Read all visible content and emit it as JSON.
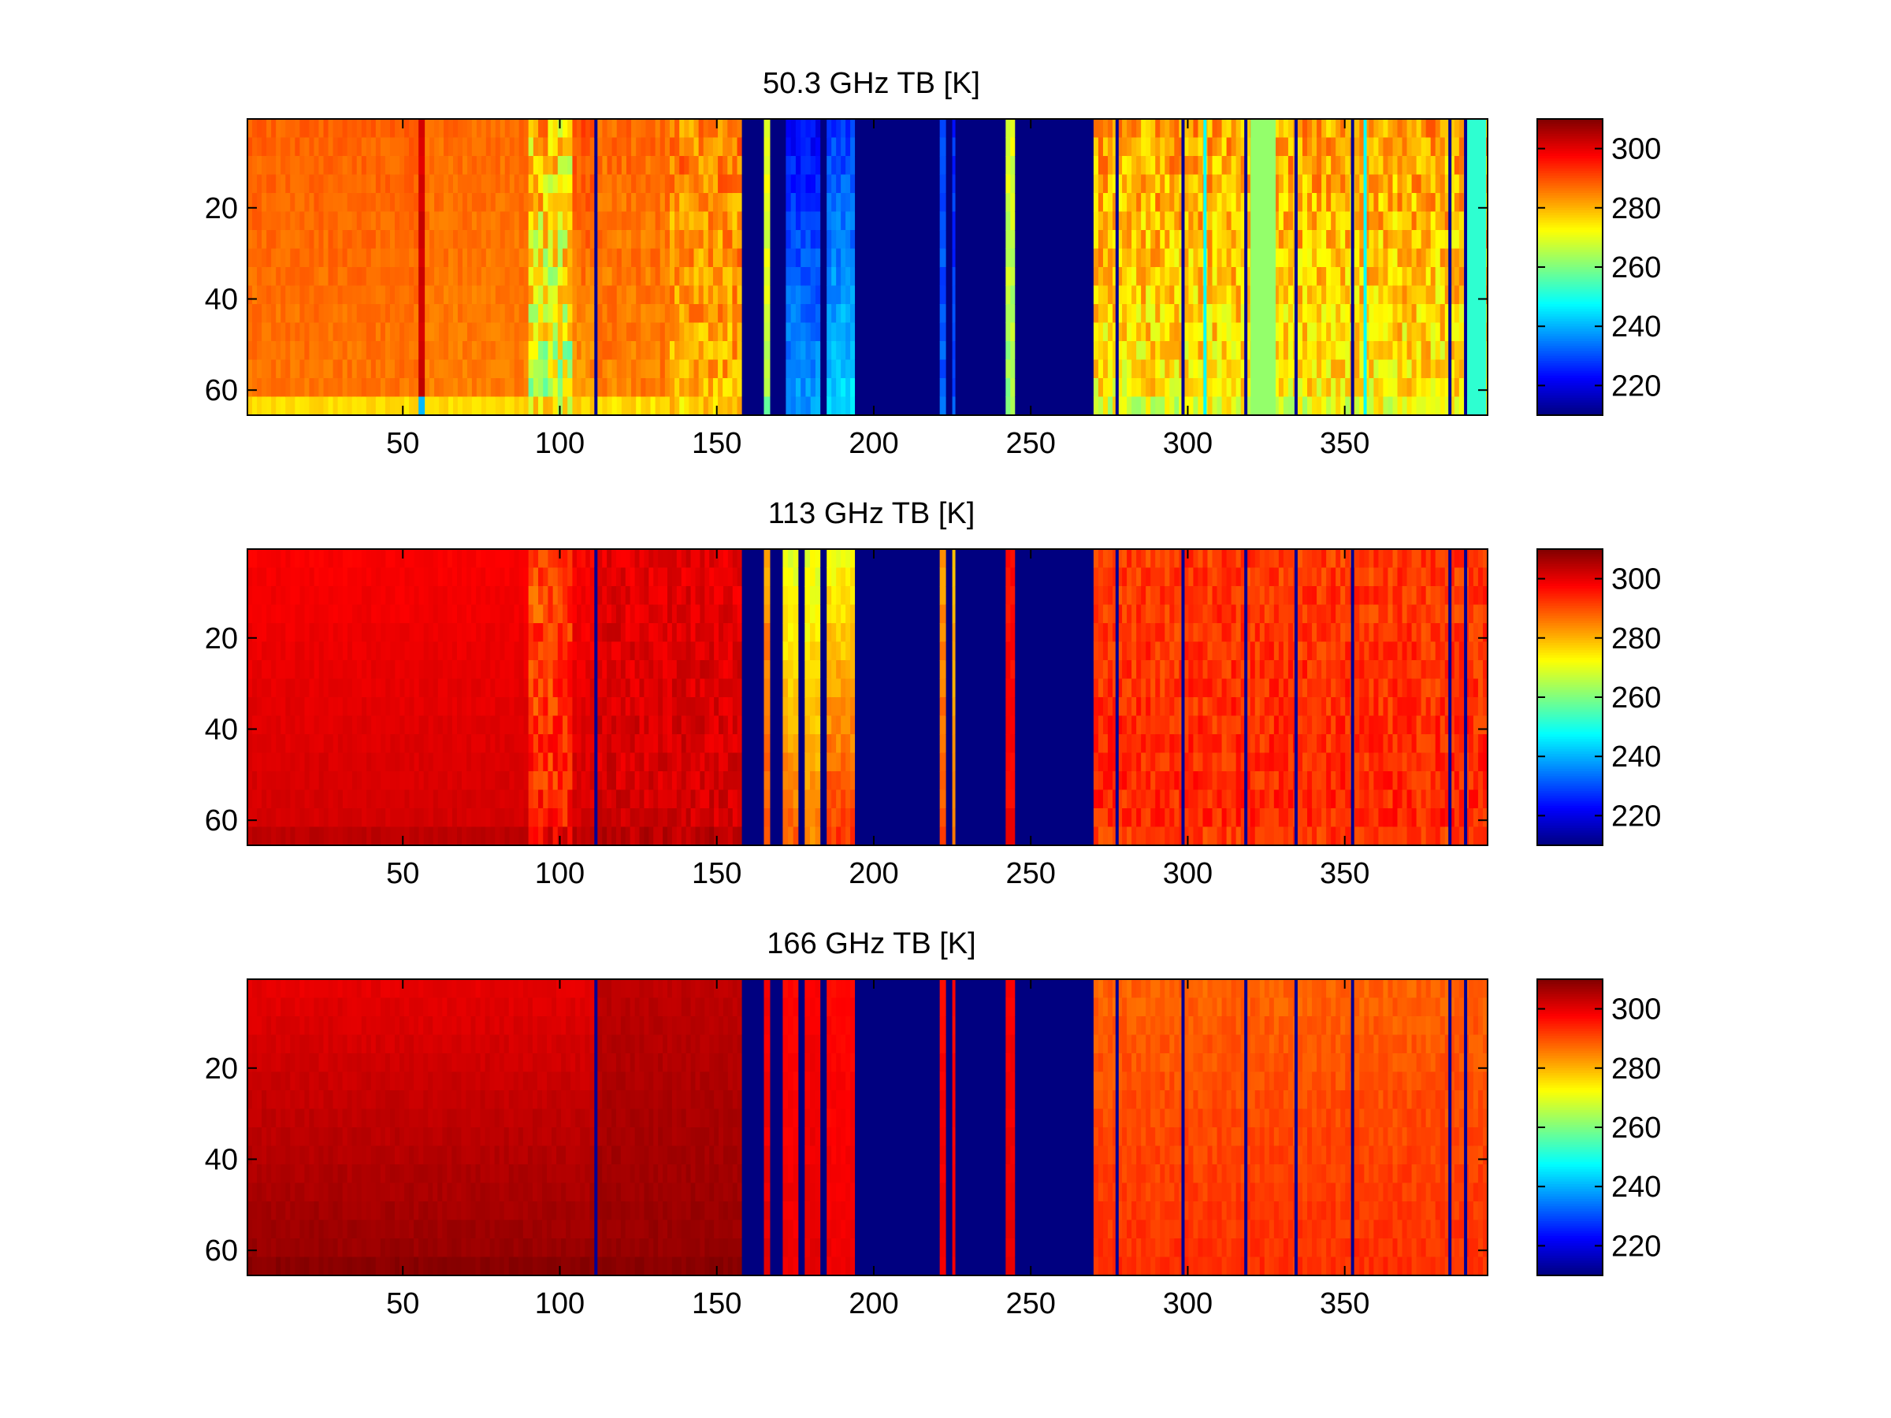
{
  "figure": {
    "background": "#ffffff",
    "colormap": "jet"
  },
  "chart_data": [
    {
      "type": "heatmap",
      "title": "50.3 GHz TB [K]",
      "xlabel": "",
      "ylabel": "",
      "xlim": [
        0.5,
        395.5
      ],
      "ylim": [
        65.5,
        0.5
      ],
      "xticks": [
        50,
        100,
        150,
        200,
        250,
        300,
        350
      ],
      "yticks": [
        20,
        40,
        60
      ],
      "colorbar": {
        "clim": [
          210,
          310
        ],
        "ticks": [
          220,
          240,
          260,
          280,
          300
        ]
      },
      "segments": [
        {
          "x": [
            0.5,
            55
          ],
          "top": 288,
          "bottom": 286,
          "bottomEdge": 276,
          "noise": 2
        },
        {
          "x": [
            55,
            57
          ],
          "top": 302,
          "bottom": 302,
          "bottomEdge": 240,
          "noise": 2
        },
        {
          "x": [
            57,
            90
          ],
          "top": 287,
          "bottom": 285,
          "bottomEdge": 276,
          "noise": 2
        },
        {
          "x": [
            90,
            104
          ],
          "top": 278,
          "bottom": 266,
          "bottomEdge": 270,
          "noise": 12
        },
        {
          "x": [
            104,
            111
          ],
          "top": 290,
          "bottom": 283,
          "bottomEdge": 276,
          "noise": 3
        },
        {
          "x": [
            111,
            112
          ],
          "top": 212,
          "bottom": 212,
          "bottomEdge": 212,
          "noise": 0
        },
        {
          "x": [
            112,
            135
          ],
          "top": 287,
          "bottom": 285,
          "bottomEdge": 276,
          "noise": 3
        },
        {
          "x": [
            135,
            158
          ],
          "top": 285,
          "bottom": 280,
          "bottomEdge": 276,
          "noise": 7
        },
        {
          "x": [
            158,
            165
          ],
          "top": 210,
          "bottom": 210,
          "bottomEdge": 210,
          "noise": 0
        },
        {
          "x": [
            165,
            167
          ],
          "top": 272,
          "bottom": 266,
          "bottomEdge": 260,
          "noise": 3
        },
        {
          "x": [
            167,
            172
          ],
          "top": 210,
          "bottom": 210,
          "bottomEdge": 210,
          "noise": 0
        },
        {
          "x": [
            172,
            183
          ],
          "top": 223,
          "bottom": 238,
          "bottomEdge": 238,
          "noise": 4
        },
        {
          "x": [
            183,
            185
          ],
          "top": 210,
          "bottom": 210,
          "bottomEdge": 210,
          "noise": 0
        },
        {
          "x": [
            185,
            194
          ],
          "top": 228,
          "bottom": 244,
          "bottomEdge": 244,
          "noise": 4
        },
        {
          "x": [
            194,
            221
          ],
          "top": 210,
          "bottom": 210,
          "bottomEdge": 210,
          "noise": 0
        },
        {
          "x": [
            221,
            223
          ],
          "top": 228,
          "bottom": 232,
          "bottomEdge": 232,
          "noise": 3
        },
        {
          "x": [
            223,
            225
          ],
          "top": 210,
          "bottom": 210,
          "bottomEdge": 210,
          "noise": 0
        },
        {
          "x": [
            225,
            226
          ],
          "top": 226,
          "bottom": 230,
          "bottomEdge": 230,
          "noise": 3
        },
        {
          "x": [
            226,
            242
          ],
          "top": 210,
          "bottom": 210,
          "bottomEdge": 210,
          "noise": 0
        },
        {
          "x": [
            242,
            245
          ],
          "top": 270,
          "bottom": 262,
          "bottomEdge": 262,
          "noise": 4
        },
        {
          "x": [
            245,
            270
          ],
          "top": 210,
          "bottom": 210,
          "bottomEdge": 210,
          "noise": 0
        },
        {
          "x": [
            270,
            395.5
          ],
          "top": 282,
          "bottom": 274,
          "bottomEdge": 270,
          "noise": 8
        }
      ],
      "stripes": [
        {
          "x": 277.5,
          "width": 1,
          "value": 212
        },
        {
          "x": 298.5,
          "width": 1,
          "value": 212
        },
        {
          "x": 305.5,
          "width": 1,
          "value": 248
        },
        {
          "x": 318.5,
          "width": 1,
          "value": 212
        },
        {
          "x": 324,
          "width": 8,
          "value": 262
        },
        {
          "x": 334.5,
          "width": 1,
          "value": 212
        },
        {
          "x": 352.5,
          "width": 1,
          "value": 212
        },
        {
          "x": 356.5,
          "width": 1,
          "value": 248
        },
        {
          "x": 383.5,
          "width": 1,
          "value": 212
        },
        {
          "x": 388.5,
          "width": 1,
          "value": 212
        },
        {
          "x": 392,
          "width": 6,
          "value": 252
        }
      ]
    },
    {
      "type": "heatmap",
      "title": "113 GHz TB [K]",
      "xlabel": "",
      "ylabel": "",
      "xlim": [
        0.5,
        395.5
      ],
      "ylim": [
        65.5,
        0.5
      ],
      "xticks": [
        50,
        100,
        150,
        200,
        250,
        300,
        350
      ],
      "yticks": [
        20,
        40,
        60
      ],
      "colorbar": {
        "clim": [
          210,
          310
        ],
        "ticks": [
          220,
          240,
          260,
          280,
          300
        ]
      },
      "segments": [
        {
          "x": [
            0.5,
            90
          ],
          "top": 298,
          "bottom": 302,
          "bottomEdge": 304,
          "noise": 1
        },
        {
          "x": [
            90,
            104
          ],
          "top": 290,
          "bottom": 295,
          "bottomEdge": 300,
          "noise": 6
        },
        {
          "x": [
            104,
            111
          ],
          "top": 298,
          "bottom": 302,
          "bottomEdge": 304,
          "noise": 2
        },
        {
          "x": [
            111,
            112
          ],
          "top": 212,
          "bottom": 212,
          "bottomEdge": 212,
          "noise": 0
        },
        {
          "x": [
            112,
            158
          ],
          "top": 300,
          "bottom": 302,
          "bottomEdge": 304,
          "noise": 3
        },
        {
          "x": [
            158,
            165
          ],
          "top": 210,
          "bottom": 210,
          "bottomEdge": 210,
          "noise": 0
        },
        {
          "x": [
            165,
            167
          ],
          "top": 282,
          "bottom": 290,
          "bottomEdge": 290,
          "noise": 3
        },
        {
          "x": [
            167,
            171
          ],
          "top": 210,
          "bottom": 210,
          "bottomEdge": 210,
          "noise": 0
        },
        {
          "x": [
            171,
            176
          ],
          "top": 270,
          "bottom": 288,
          "bottomEdge": 288,
          "noise": 3
        },
        {
          "x": [
            176,
            178
          ],
          "top": 210,
          "bottom": 210,
          "bottomEdge": 210,
          "noise": 0
        },
        {
          "x": [
            178,
            183
          ],
          "top": 270,
          "bottom": 285,
          "bottomEdge": 285,
          "noise": 3
        },
        {
          "x": [
            183,
            185
          ],
          "top": 210,
          "bottom": 210,
          "bottomEdge": 210,
          "noise": 0
        },
        {
          "x": [
            185,
            194
          ],
          "top": 272,
          "bottom": 292,
          "bottomEdge": 292,
          "noise": 3
        },
        {
          "x": [
            194,
            221
          ],
          "top": 210,
          "bottom": 210,
          "bottomEdge": 210,
          "noise": 0
        },
        {
          "x": [
            221,
            223
          ],
          "top": 282,
          "bottom": 290,
          "bottomEdge": 290,
          "noise": 2
        },
        {
          "x": [
            223,
            225
          ],
          "top": 210,
          "bottom": 210,
          "bottomEdge": 210,
          "noise": 0
        },
        {
          "x": [
            225,
            226
          ],
          "top": 278,
          "bottom": 286,
          "bottomEdge": 286,
          "noise": 2
        },
        {
          "x": [
            226,
            242
          ],
          "top": 210,
          "bottom": 210,
          "bottomEdge": 210,
          "noise": 0
        },
        {
          "x": [
            242,
            245
          ],
          "top": 296,
          "bottom": 298,
          "bottomEdge": 298,
          "noise": 2
        },
        {
          "x": [
            245,
            270
          ],
          "top": 210,
          "bottom": 210,
          "bottomEdge": 210,
          "noise": 0
        },
        {
          "x": [
            270,
            395.5
          ],
          "top": 292,
          "bottom": 294,
          "bottomEdge": 292,
          "noise": 4
        }
      ],
      "stripes": [
        {
          "x": 277.5,
          "width": 1,
          "value": 212
        },
        {
          "x": 298.5,
          "width": 1,
          "value": 212
        },
        {
          "x": 318.5,
          "width": 1,
          "value": 212
        },
        {
          "x": 334.5,
          "width": 1,
          "value": 212
        },
        {
          "x": 352.5,
          "width": 1,
          "value": 212
        },
        {
          "x": 383.5,
          "width": 1,
          "value": 212
        },
        {
          "x": 388.5,
          "width": 1,
          "value": 212
        }
      ]
    },
    {
      "type": "heatmap",
      "title": "166 GHz TB [K]",
      "xlabel": "",
      "ylabel": "",
      "xlim": [
        0.5,
        395.5
      ],
      "ylim": [
        65.5,
        0.5
      ],
      "xticks": [
        50,
        100,
        150,
        200,
        250,
        300,
        350
      ],
      "yticks": [
        20,
        40,
        60
      ],
      "colorbar": {
        "clim": [
          210,
          310
        ],
        "ticks": [
          220,
          240,
          260,
          280,
          300
        ]
      },
      "segments": [
        {
          "x": [
            0.5,
            111
          ],
          "top": 300,
          "bottom": 308,
          "bottomEdge": 309,
          "noise": 1
        },
        {
          "x": [
            111,
            112
          ],
          "top": 212,
          "bottom": 212,
          "bottomEdge": 212,
          "noise": 0
        },
        {
          "x": [
            112,
            158
          ],
          "top": 304,
          "bottom": 308,
          "bottomEdge": 309,
          "noise": 1
        },
        {
          "x": [
            158,
            165
          ],
          "top": 210,
          "bottom": 210,
          "bottomEdge": 210,
          "noise": 0
        },
        {
          "x": [
            165,
            167
          ],
          "top": 298,
          "bottom": 300,
          "bottomEdge": 300,
          "noise": 1
        },
        {
          "x": [
            167,
            171
          ],
          "top": 210,
          "bottom": 210,
          "bottomEdge": 210,
          "noise": 0
        },
        {
          "x": [
            171,
            176
          ],
          "top": 297,
          "bottom": 299,
          "bottomEdge": 299,
          "noise": 1
        },
        {
          "x": [
            176,
            178
          ],
          "top": 210,
          "bottom": 210,
          "bottomEdge": 210,
          "noise": 0
        },
        {
          "x": [
            178,
            183
          ],
          "top": 298,
          "bottom": 300,
          "bottomEdge": 300,
          "noise": 1
        },
        {
          "x": [
            183,
            185
          ],
          "top": 210,
          "bottom": 210,
          "bottomEdge": 210,
          "noise": 0
        },
        {
          "x": [
            185,
            194
          ],
          "top": 297,
          "bottom": 299,
          "bottomEdge": 299,
          "noise": 1
        },
        {
          "x": [
            194,
            221
          ],
          "top": 210,
          "bottom": 210,
          "bottomEdge": 210,
          "noise": 0
        },
        {
          "x": [
            221,
            223
          ],
          "top": 297,
          "bottom": 299,
          "bottomEdge": 299,
          "noise": 1
        },
        {
          "x": [
            223,
            225
          ],
          "top": 210,
          "bottom": 210,
          "bottomEdge": 210,
          "noise": 0
        },
        {
          "x": [
            225,
            226
          ],
          "top": 297,
          "bottom": 299,
          "bottomEdge": 299,
          "noise": 1
        },
        {
          "x": [
            226,
            242
          ],
          "top": 210,
          "bottom": 210,
          "bottomEdge": 210,
          "noise": 0
        },
        {
          "x": [
            242,
            245
          ],
          "top": 298,
          "bottom": 300,
          "bottomEdge": 300,
          "noise": 1
        },
        {
          "x": [
            245,
            270
          ],
          "top": 210,
          "bottom": 210,
          "bottomEdge": 210,
          "noise": 0
        },
        {
          "x": [
            270,
            395.5
          ],
          "top": 288,
          "bottom": 293,
          "bottomEdge": 293,
          "noise": 2
        }
      ],
      "stripes": [
        {
          "x": 277.5,
          "width": 1,
          "value": 212
        },
        {
          "x": 298.5,
          "width": 1,
          "value": 212
        },
        {
          "x": 318.5,
          "width": 1,
          "value": 212
        },
        {
          "x": 334.5,
          "width": 1,
          "value": 212
        },
        {
          "x": 352.5,
          "width": 1,
          "value": 212
        },
        {
          "x": 383.5,
          "width": 1,
          "value": 212
        },
        {
          "x": 388.5,
          "width": 1,
          "value": 212
        }
      ]
    }
  ]
}
